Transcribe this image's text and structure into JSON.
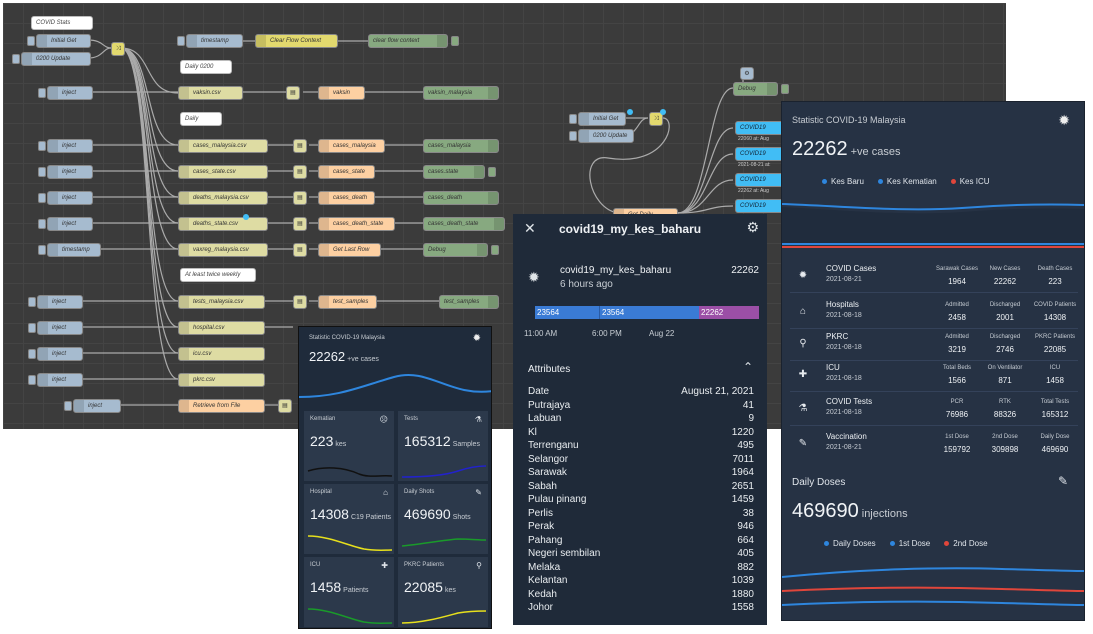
{
  "flow": {
    "comments": {
      "covid_stats": "COVID Stats",
      "daily_0200": "Daily 0200",
      "daily": "Daily",
      "twice_weekly": "At least twice weekly"
    },
    "injects": {
      "initial_get": "Initial Get",
      "update_0200": "0200 Update",
      "inject": "inject",
      "timestamp": "timestamp"
    },
    "files": {
      "vaksin": "vaksin.csv",
      "cases_malaysia": "cases_malaysia.csv",
      "cases_state": "cases_state.csv",
      "deaths_malaysia": "deaths_malaysia.csv",
      "deaths_state": "deaths_state.csv",
      "vaxreg": "vaxreg_malaysia.csv",
      "tests": "tests_malaysia.csv",
      "hospital": "hospital.csv",
      "icu": "icu.csv",
      "pkrc": "pkrc.csv",
      "retrieve": "Retrieve from File"
    },
    "functions": {
      "vaksin": "vaksin",
      "cases_malaysia": "cases_malaysia",
      "cases_state": "cases_state",
      "cases_death": "cases_death",
      "cases_death_state": "cases_death_state",
      "get_last_row": "Get Last Row",
      "test_samples": "test_samples",
      "hospital_stats": "Hospital Stats"
    },
    "debugs": {
      "clear_flow": "clear flow context",
      "vaksin_malaysia": "vaksin_malaysia",
      "cases_malaysia": "cases_malaysia",
      "cases_state": "cases.state",
      "cases_death": "cases_death",
      "cases_death_state": "cases_death_state",
      "debug": "Debug",
      "test_samples": "test_samples",
      "hospital_stats": "Hospital Stats"
    },
    "change": {
      "clear_flow_context": "Clear Flow Context"
    },
    "ha": {
      "debug": "Debug",
      "covid19": "COVID19",
      "covid19b": "COVID19",
      "covid19c": "COVID19",
      "covid19d": "COVID19",
      "st1": "22060 at: Aug",
      "st2": "2021-08-21 at:",
      "st3": "22262 at: Aug",
      "st4": "2021-08-21 at:",
      "st5": "22060 at: Aug"
    },
    "func_right": "Get Daily"
  },
  "dash_small": {
    "header": "Statistic COVID-19 Malaysia",
    "main_value": "22262",
    "main_unit": "+ve cases",
    "cards": [
      {
        "title": "Kematian",
        "value": "223",
        "unit": "kes",
        "color": "#111111"
      },
      {
        "title": "Tests",
        "value": "165312",
        "unit": "Samples",
        "color": "#2222cc"
      },
      {
        "title": "Hospital",
        "value": "14308",
        "unit": "C19 Patients",
        "color": "#e7e01c"
      },
      {
        "title": "Daily Shots",
        "value": "469690",
        "unit": "Shots",
        "color": "#1a9a2a"
      },
      {
        "title": "ICU",
        "value": "1458",
        "unit": "Patients",
        "color": "#1a9a2a"
      },
      {
        "title": "PKRC Patients",
        "value": "22085",
        "unit": "kes",
        "color": "#e7e01c"
      }
    ]
  },
  "history": {
    "title": "covid19_my_kes_baharu",
    "entity": "covid19_my_kes_baharu",
    "ago": "6 hours ago",
    "state": "22262",
    "bar": {
      "a": "23564",
      "b": "23564",
      "c": "22262"
    },
    "times": [
      "11:00 AM",
      "6:00 PM",
      "Aug 22"
    ],
    "attributes_label": "Attributes",
    "rows": [
      [
        "Date",
        "August 21, 2021"
      ],
      [
        "Putrajaya",
        "41"
      ],
      [
        "Labuan",
        "9"
      ],
      [
        "Kl",
        "1220"
      ],
      [
        "Terrenganu",
        "495"
      ],
      [
        "Selangor",
        "7011"
      ],
      [
        "Sarawak",
        "1964"
      ],
      [
        "Sabah",
        "2651"
      ],
      [
        "Pulau pinang",
        "1459"
      ],
      [
        "Perlis",
        "38"
      ],
      [
        "Perak",
        "946"
      ],
      [
        "Pahang",
        "664"
      ],
      [
        "Negeri sembilan",
        "405"
      ],
      [
        "Melaka",
        "882"
      ],
      [
        "Kelantan",
        "1039"
      ],
      [
        "Kedah",
        "1880"
      ],
      [
        "Johor",
        "1558"
      ]
    ]
  },
  "dash_big": {
    "header": "Statistic COVID-19 Malaysia",
    "main_value": "22262",
    "main_unit": "+ve cases",
    "legend": [
      {
        "label": "Kes Baru",
        "color": "#2e86de"
      },
      {
        "label": "Kes Kematian",
        "color": "#2e86de"
      },
      {
        "label": "Kes ICU",
        "color": "#e0463b"
      }
    ],
    "sections": [
      {
        "title": "COVID Cases",
        "date": "2021-08-21",
        "icon": "virus",
        "stats": [
          [
            "Sarawak Cases",
            "1964"
          ],
          [
            "New Cases",
            "22262"
          ],
          [
            "Death Cases",
            "223"
          ]
        ]
      },
      {
        "title": "Hospitals",
        "date": "2021-08-18",
        "icon": "hospital",
        "stats": [
          [
            "Admitted",
            "2458"
          ],
          [
            "Discharged",
            "2001"
          ],
          [
            "COVID Patients",
            "14308"
          ]
        ]
      },
      {
        "title": "PKRC",
        "date": "2021-08-18",
        "icon": "pin",
        "stats": [
          [
            "Admitted",
            "3219"
          ],
          [
            "Discharged",
            "2746"
          ],
          [
            "PKRC Patients",
            "22085"
          ]
        ]
      },
      {
        "title": "ICU",
        "date": "2021-08-18",
        "icon": "plus",
        "stats": [
          [
            "Total Beds",
            "1566"
          ],
          [
            "On Ventilator",
            "871"
          ],
          [
            "ICU",
            "1458"
          ]
        ]
      },
      {
        "title": "COVID Tests",
        "date": "2021-08-18",
        "icon": "tube",
        "stats": [
          [
            "PCR",
            "76986"
          ],
          [
            "RTK",
            "88326"
          ],
          [
            "Total Tests",
            "165312"
          ]
        ]
      },
      {
        "title": "Vaccination",
        "date": "2021-08-21",
        "icon": "syringe",
        "stats": [
          [
            "1st Dose",
            "159792"
          ],
          [
            "2nd Dose",
            "309898"
          ],
          [
            "Daily Dose",
            "469690"
          ]
        ]
      }
    ],
    "doses": {
      "title": "Daily Doses",
      "value": "469690",
      "unit": "injections",
      "legend": [
        {
          "label": "Daily Doses",
          "color": "#2e86de"
        },
        {
          "label": "1st Dose",
          "color": "#2e86de"
        },
        {
          "label": "2nd Dose",
          "color": "#e0463b"
        }
      ]
    }
  }
}
